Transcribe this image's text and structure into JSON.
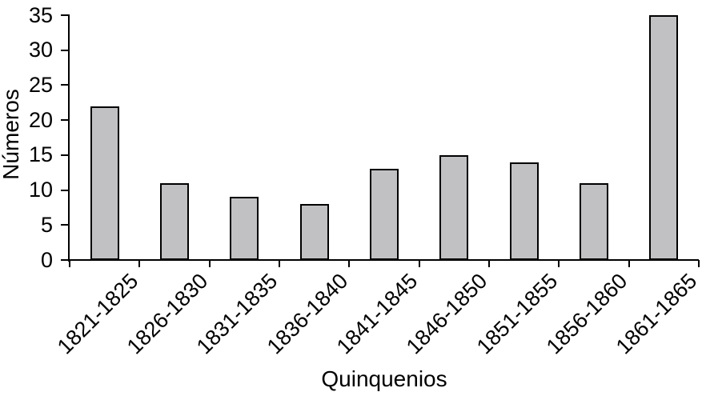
{
  "chart_data": {
    "type": "bar",
    "title": "",
    "xlabel": "Quinquenios",
    "ylabel": "Números",
    "categories": [
      "1821-1825",
      "1826-1830",
      "1831-1835",
      "1836-1840",
      "1841-1845",
      "1846-1850",
      "1851-1855",
      "1856-1860",
      "1861-1865"
    ],
    "values": [
      22,
      11,
      9,
      8,
      13,
      15,
      14,
      11,
      35
    ],
    "ylim": [
      0,
      35
    ],
    "yticks": [
      0,
      5,
      10,
      15,
      20,
      25,
      30,
      35
    ],
    "grid": false,
    "x_tick_rotation_deg": 45,
    "bar_fill": "#c1c1c4",
    "bar_stroke": "#000000",
    "axis_color": "#000000",
    "text_color": "#000000",
    "background": "#ffffff"
  }
}
